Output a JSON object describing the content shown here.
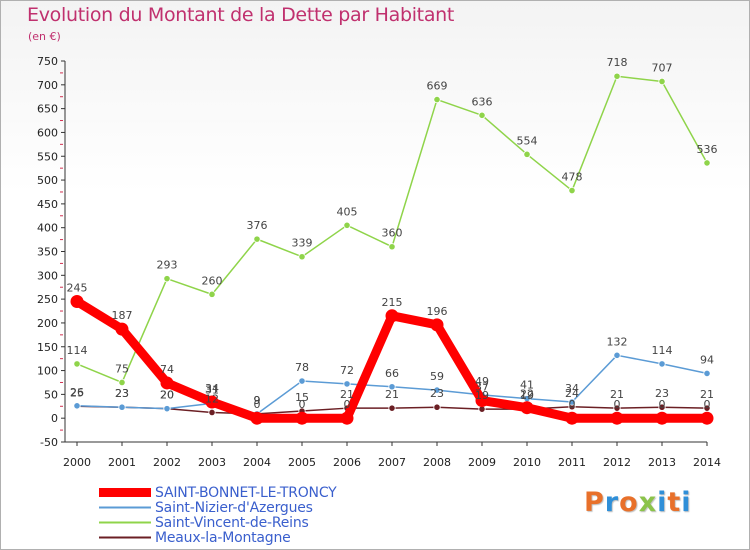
{
  "title": "Evolution du Montant de la Dette par Habitant",
  "subtitle": "(en €)",
  "brand": {
    "text": "Proxiti",
    "colors": [
      "#e8702a",
      "#2f8fd8",
      "#e8702a",
      "#8bc34a",
      "#2f8fd8",
      "#e8702a",
      "#2f8fd8"
    ]
  },
  "chart_data": {
    "type": "line",
    "x": [
      "2000",
      "2001",
      "2002",
      "2003",
      "2004",
      "2005",
      "2006",
      "2007",
      "2008",
      "2009",
      "2010",
      "2011",
      "2012",
      "2013",
      "2014"
    ],
    "ylim": [
      -50,
      750
    ],
    "yticks": [
      -50,
      0,
      50,
      100,
      150,
      200,
      250,
      300,
      350,
      400,
      450,
      500,
      550,
      600,
      650,
      700,
      750
    ],
    "grid": false,
    "legend_position": "bottom-left",
    "series": [
      {
        "name": "SAINT-BONNET-LE-TRONCY",
        "color": "#ff0000",
        "values": [
          245,
          187,
          74,
          34,
          0,
          0,
          0,
          215,
          196,
          37,
          22,
          0,
          0,
          0,
          0
        ],
        "labels": [
          "245",
          "187",
          "74",
          "34",
          "0",
          "0",
          "0",
          "215",
          "196",
          "37",
          "22",
          "0",
          "0",
          "0",
          "0"
        ]
      },
      {
        "name": "Saint-Nizier-d'Azergues",
        "color": "#5b9bd5",
        "values": [
          26,
          23,
          20,
          31,
          9,
          78,
          72,
          66,
          59,
          49,
          41,
          34,
          132,
          114,
          94
        ],
        "labels": [
          "26",
          "23",
          "20",
          "31",
          "9",
          "78",
          "72",
          "66",
          "59",
          "49",
          "41",
          "34",
          "132",
          "114",
          "94"
        ]
      },
      {
        "name": "Saint-Vincent-de-Reins",
        "color": "#8fd44a",
        "values": [
          114,
          75,
          293,
          260,
          376,
          339,
          405,
          360,
          669,
          636,
          554,
          478,
          718,
          707,
          536
        ],
        "labels": [
          "114",
          "75",
          "293",
          "260",
          "376",
          "339",
          "405",
          "360",
          "669",
          "636",
          "554",
          "478",
          "718",
          "707",
          "536"
        ]
      },
      {
        "name": "Meaux-la-Montagne",
        "color": "#6b1f24",
        "values": [
          25,
          23,
          20,
          12,
          9,
          15,
          21,
          21,
          23,
          19,
          19,
          24,
          21,
          23,
          21
        ],
        "labels": [
          "25",
          "23",
          "20",
          "12",
          "9",
          "15",
          "21",
          "21",
          "23",
          "19",
          "19",
          "24",
          "21",
          "23",
          "21"
        ]
      }
    ]
  }
}
